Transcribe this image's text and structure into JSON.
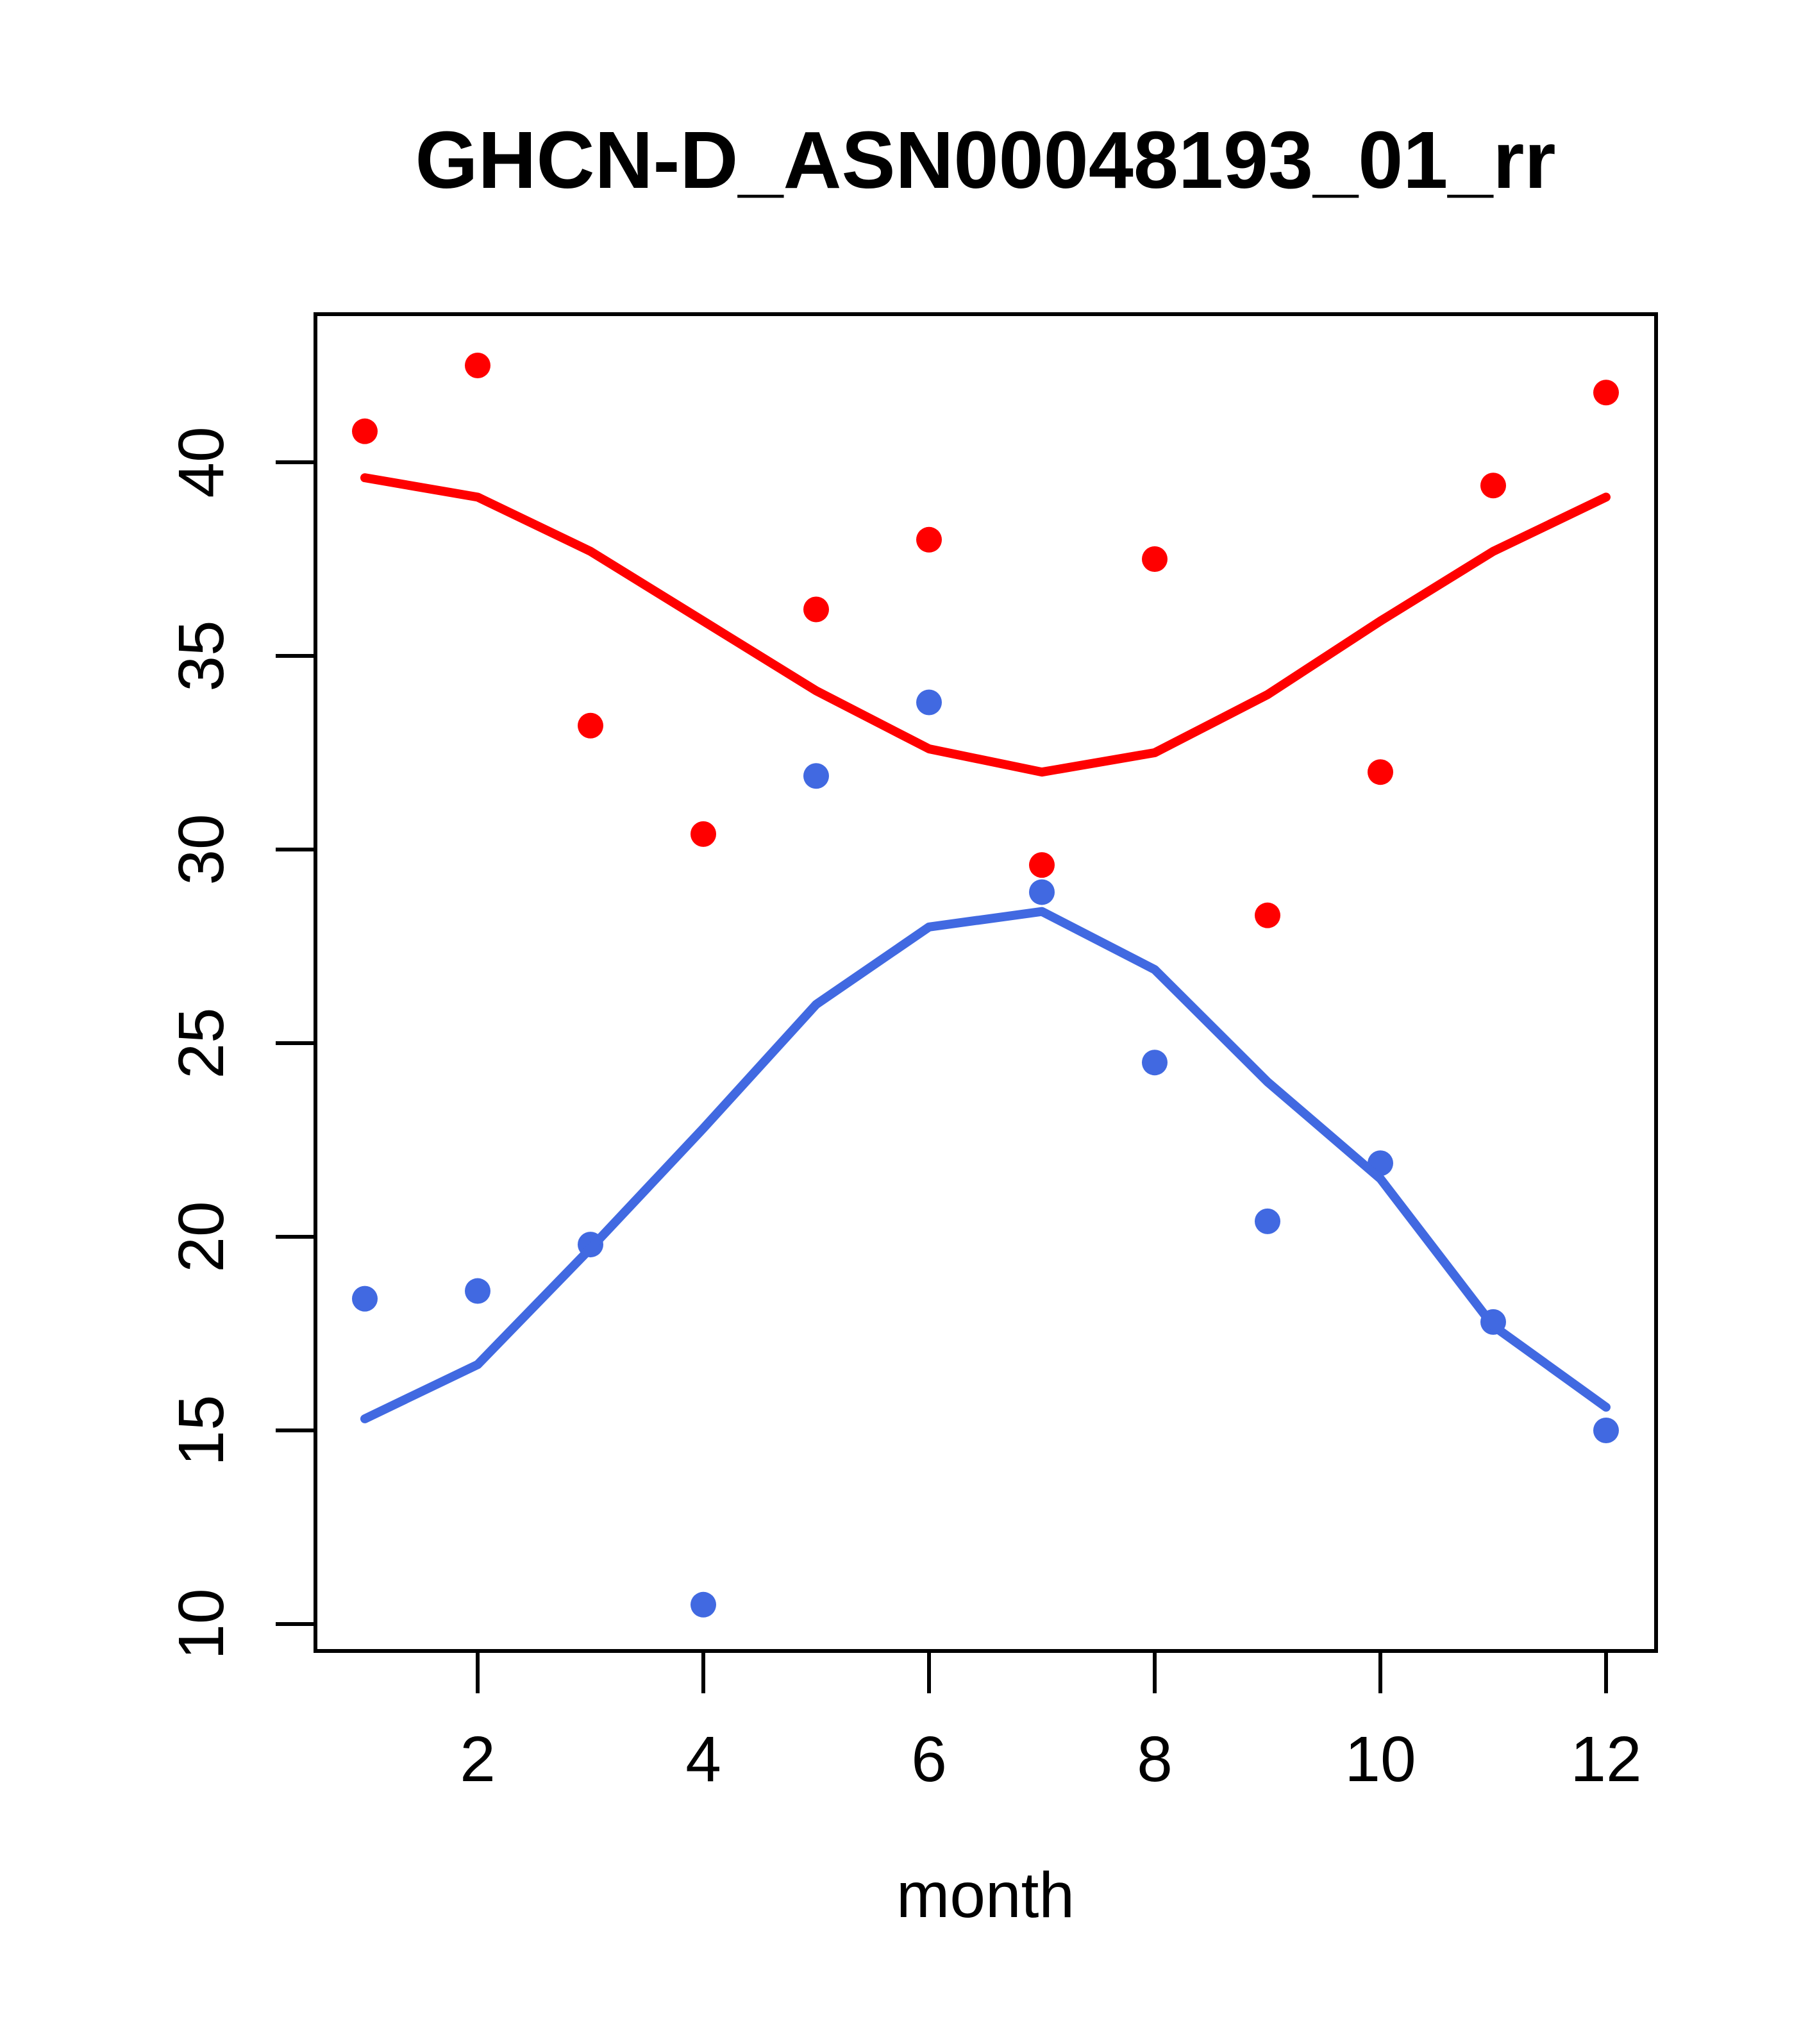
{
  "title": "GHCN-D_ASN00048193_01_rr",
  "colors": {
    "red": "#FF0000",
    "blue": "#4169E1",
    "axis": "#000000",
    "background": "#FFFFFF"
  },
  "x_axis": {
    "label": "month",
    "tick_labels": [
      "2",
      "4",
      "6",
      "8",
      "10",
      "12"
    ],
    "tick_values": [
      2,
      4,
      6,
      8,
      10,
      12
    ]
  },
  "y_axis": {
    "label": "",
    "tick_labels": [
      "10",
      "15",
      "20",
      "25",
      "30",
      "35",
      "40"
    ],
    "tick_values": [
      10,
      15,
      20,
      25,
      30,
      35,
      40
    ]
  },
  "chart_data": {
    "type": "scatter",
    "title": "GHCN-D_ASN00048193_01_rr",
    "xlabel": "month",
    "ylabel": "",
    "x": [
      1,
      2,
      3,
      4,
      5,
      6,
      7,
      8,
      9,
      10,
      11,
      12
    ],
    "xlim": [
      0.56,
      12.44
    ],
    "ylim": [
      9.3,
      43.8
    ],
    "grid": false,
    "legend_position": "none",
    "series": [
      {
        "name": "red points (monthly values, upper series)",
        "style": "points",
        "color_key": "red",
        "values": [
          40.8,
          42.5,
          33.2,
          30.4,
          36.2,
          38.0,
          29.6,
          37.5,
          28.3,
          32.0,
          39.4,
          41.8
        ]
      },
      {
        "name": "red smooth line (lowess of upper series)",
        "style": "line",
        "color_key": "red",
        "values": [
          39.6,
          39.1,
          37.7,
          35.9,
          34.1,
          32.6,
          32.0,
          32.5,
          34.0,
          35.9,
          37.7,
          39.1
        ]
      },
      {
        "name": "blue points (monthly values, lower series)",
        "style": "points",
        "color_key": "blue",
        "values": [
          18.4,
          18.6,
          19.8,
          10.5,
          31.9,
          33.8,
          28.9,
          24.5,
          20.4,
          21.9,
          17.8,
          15.0
        ]
      },
      {
        "name": "blue smooth line (lowess of lower series)",
        "style": "line",
        "color_key": "blue",
        "values": [
          15.3,
          16.7,
          19.7,
          22.8,
          26.0,
          28.0,
          28.4,
          26.9,
          24.0,
          21.5,
          17.7,
          15.6
        ]
      }
    ]
  }
}
